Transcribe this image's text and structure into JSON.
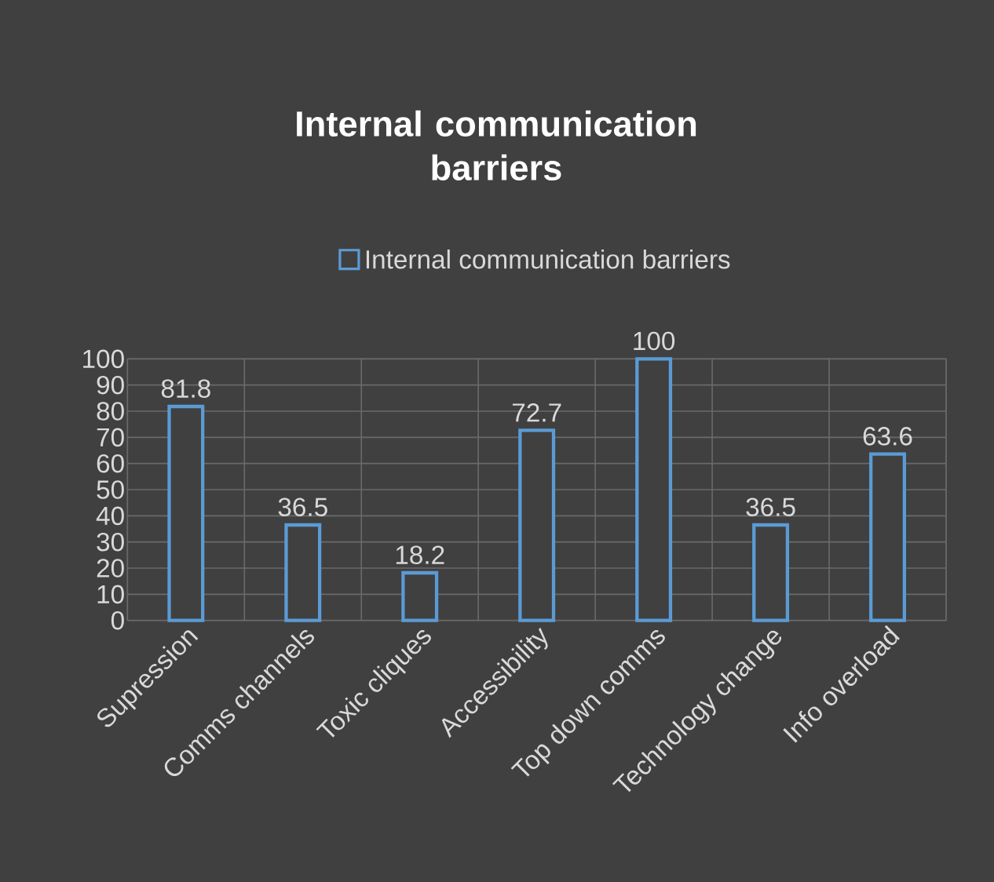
{
  "chart_data": {
    "type": "bar",
    "title": "Internal communication barriers",
    "categories": [
      "Supression",
      "Comms channels",
      "Toxic cliques",
      "Accessibility",
      "Top down comms",
      "Technology change",
      "Info overload"
    ],
    "series": [
      {
        "name": "Internal communication barriers",
        "color": "#5b9bd5",
        "values": [
          81.8,
          36.5,
          18.2,
          72.7,
          100,
          36.5,
          63.6
        ]
      }
    ],
    "ylim": [
      0,
      100
    ],
    "yticks": [
      0,
      10,
      20,
      30,
      40,
      50,
      60,
      70,
      80,
      90,
      100
    ],
    "grid": true,
    "legend": "top",
    "data_labels": true
  }
}
